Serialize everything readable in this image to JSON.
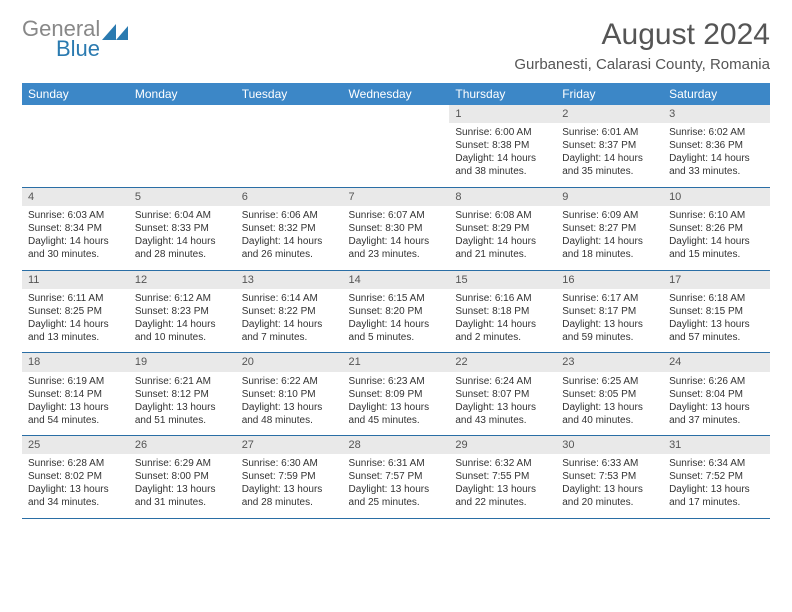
{
  "logo": {
    "text1": "General",
    "text2": "Blue",
    "color_gray": "#888888",
    "color_blue": "#2a7ab0"
  },
  "title": "August 2024",
  "location": "Gurbanesti, Calarasi County, Romania",
  "header_bg": "#3c87c7",
  "header_fg": "#ffffff",
  "daynum_bg": "#e9e9e9",
  "border_color": "#2a6ea5",
  "weekdays": [
    "Sunday",
    "Monday",
    "Tuesday",
    "Wednesday",
    "Thursday",
    "Friday",
    "Saturday"
  ],
  "weeks": [
    [
      null,
      null,
      null,
      null,
      {
        "n": "1",
        "rise": "6:00 AM",
        "set": "8:38 PM",
        "dayl": "14 hours and 38 minutes."
      },
      {
        "n": "2",
        "rise": "6:01 AM",
        "set": "8:37 PM",
        "dayl": "14 hours and 35 minutes."
      },
      {
        "n": "3",
        "rise": "6:02 AM",
        "set": "8:36 PM",
        "dayl": "14 hours and 33 minutes."
      }
    ],
    [
      {
        "n": "4",
        "rise": "6:03 AM",
        "set": "8:34 PM",
        "dayl": "14 hours and 30 minutes."
      },
      {
        "n": "5",
        "rise": "6:04 AM",
        "set": "8:33 PM",
        "dayl": "14 hours and 28 minutes."
      },
      {
        "n": "6",
        "rise": "6:06 AM",
        "set": "8:32 PM",
        "dayl": "14 hours and 26 minutes."
      },
      {
        "n": "7",
        "rise": "6:07 AM",
        "set": "8:30 PM",
        "dayl": "14 hours and 23 minutes."
      },
      {
        "n": "8",
        "rise": "6:08 AM",
        "set": "8:29 PM",
        "dayl": "14 hours and 21 minutes."
      },
      {
        "n": "9",
        "rise": "6:09 AM",
        "set": "8:27 PM",
        "dayl": "14 hours and 18 minutes."
      },
      {
        "n": "10",
        "rise": "6:10 AM",
        "set": "8:26 PM",
        "dayl": "14 hours and 15 minutes."
      }
    ],
    [
      {
        "n": "11",
        "rise": "6:11 AM",
        "set": "8:25 PM",
        "dayl": "14 hours and 13 minutes."
      },
      {
        "n": "12",
        "rise": "6:12 AM",
        "set": "8:23 PM",
        "dayl": "14 hours and 10 minutes."
      },
      {
        "n": "13",
        "rise": "6:14 AM",
        "set": "8:22 PM",
        "dayl": "14 hours and 7 minutes."
      },
      {
        "n": "14",
        "rise": "6:15 AM",
        "set": "8:20 PM",
        "dayl": "14 hours and 5 minutes."
      },
      {
        "n": "15",
        "rise": "6:16 AM",
        "set": "8:18 PM",
        "dayl": "14 hours and 2 minutes."
      },
      {
        "n": "16",
        "rise": "6:17 AM",
        "set": "8:17 PM",
        "dayl": "13 hours and 59 minutes."
      },
      {
        "n": "17",
        "rise": "6:18 AM",
        "set": "8:15 PM",
        "dayl": "13 hours and 57 minutes."
      }
    ],
    [
      {
        "n": "18",
        "rise": "6:19 AM",
        "set": "8:14 PM",
        "dayl": "13 hours and 54 minutes."
      },
      {
        "n": "19",
        "rise": "6:21 AM",
        "set": "8:12 PM",
        "dayl": "13 hours and 51 minutes."
      },
      {
        "n": "20",
        "rise": "6:22 AM",
        "set": "8:10 PM",
        "dayl": "13 hours and 48 minutes."
      },
      {
        "n": "21",
        "rise": "6:23 AM",
        "set": "8:09 PM",
        "dayl": "13 hours and 45 minutes."
      },
      {
        "n": "22",
        "rise": "6:24 AM",
        "set": "8:07 PM",
        "dayl": "13 hours and 43 minutes."
      },
      {
        "n": "23",
        "rise": "6:25 AM",
        "set": "8:05 PM",
        "dayl": "13 hours and 40 minutes."
      },
      {
        "n": "24",
        "rise": "6:26 AM",
        "set": "8:04 PM",
        "dayl": "13 hours and 37 minutes."
      }
    ],
    [
      {
        "n": "25",
        "rise": "6:28 AM",
        "set": "8:02 PM",
        "dayl": "13 hours and 34 minutes."
      },
      {
        "n": "26",
        "rise": "6:29 AM",
        "set": "8:00 PM",
        "dayl": "13 hours and 31 minutes."
      },
      {
        "n": "27",
        "rise": "6:30 AM",
        "set": "7:59 PM",
        "dayl": "13 hours and 28 minutes."
      },
      {
        "n": "28",
        "rise": "6:31 AM",
        "set": "7:57 PM",
        "dayl": "13 hours and 25 minutes."
      },
      {
        "n": "29",
        "rise": "6:32 AM",
        "set": "7:55 PM",
        "dayl": "13 hours and 22 minutes."
      },
      {
        "n": "30",
        "rise": "6:33 AM",
        "set": "7:53 PM",
        "dayl": "13 hours and 20 minutes."
      },
      {
        "n": "31",
        "rise": "6:34 AM",
        "set": "7:52 PM",
        "dayl": "13 hours and 17 minutes."
      }
    ]
  ],
  "labels": {
    "sunrise": "Sunrise: ",
    "sunset": "Sunset: ",
    "daylight": "Daylight: "
  }
}
